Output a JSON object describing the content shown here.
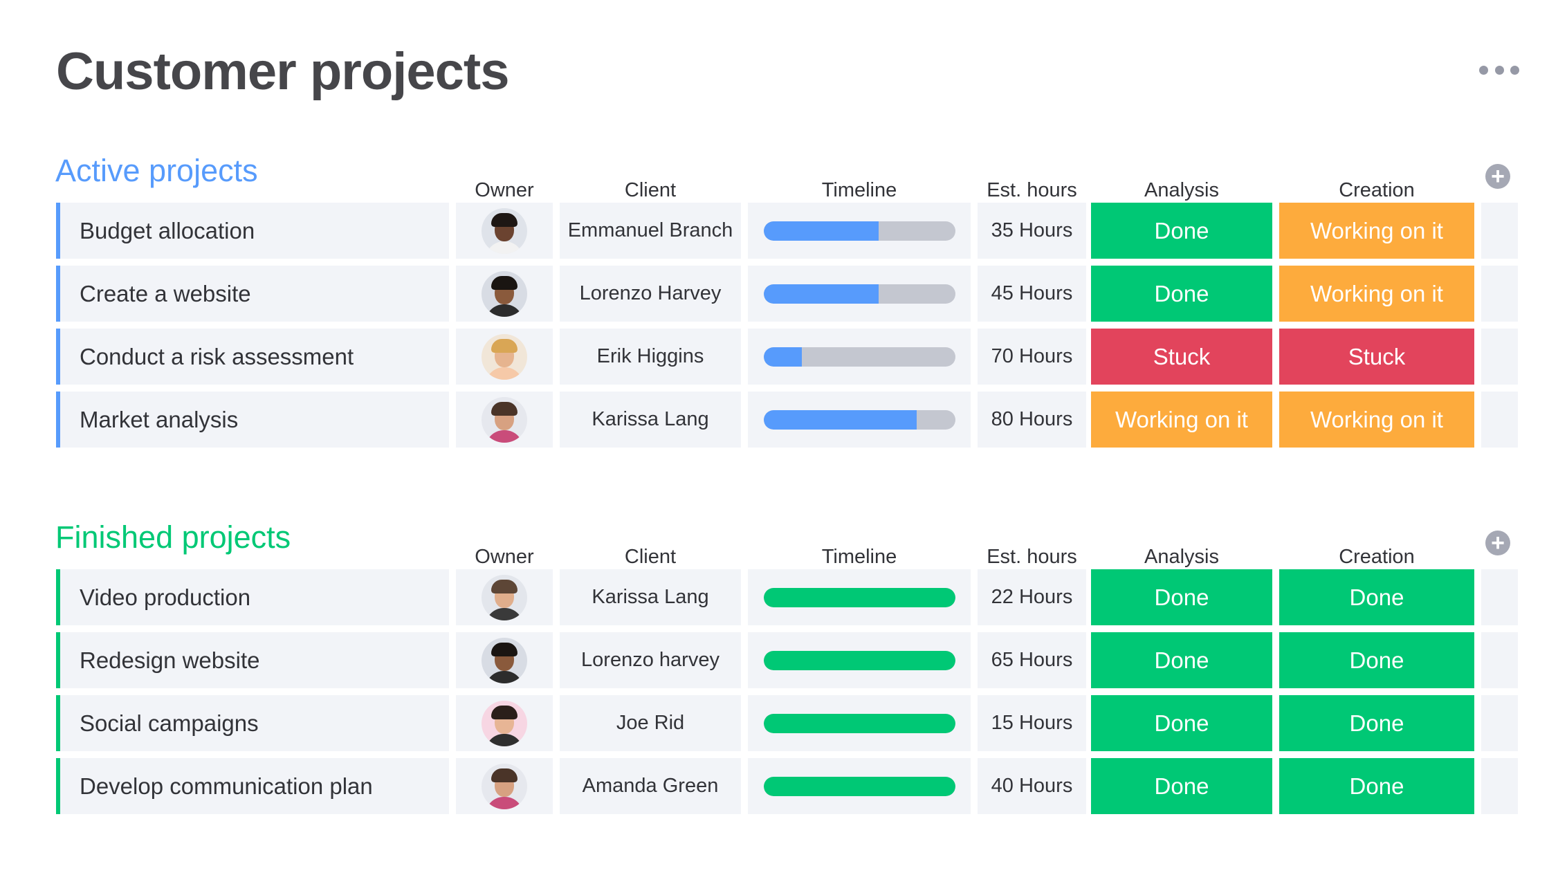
{
  "page": {
    "title": "Customer projects",
    "more_icon": "more-horizontal-icon"
  },
  "colors": {
    "active_group": "#579bfc",
    "finished_group": "#00c875",
    "timeline_active_fill": "#579bfc",
    "timeline_finished_fill": "#00c875",
    "timeline_track": "#c4c7d0",
    "status": {
      "Done": "#00c875",
      "Working on it": "#fdab3d",
      "Stuck": "#e2445c"
    }
  },
  "columns": {
    "owner": "Owner",
    "client": "Client",
    "timeline": "Timeline",
    "hours": "Est. hours",
    "analysis": "Analysis",
    "creation": "Creation",
    "add_icon": "plus-circle-icon"
  },
  "groups": [
    {
      "title": "Active projects",
      "kind": "active",
      "rows": [
        {
          "name": "Budget allocation",
          "owner_avatar": "avatar-woman-glasses",
          "client": "Emmanuel Branch",
          "timeline_progress": 0.6,
          "hours": "35 Hours",
          "analysis": "Done",
          "creation": "Working on it"
        },
        {
          "name": "Create a website",
          "owner_avatar": "avatar-man-beard",
          "client": "Lorenzo Harvey",
          "timeline_progress": 0.6,
          "hours": "45 Hours",
          "analysis": "Done",
          "creation": "Working on it"
        },
        {
          "name": "Conduct a risk assessment",
          "owner_avatar": "avatar-woman-blonde",
          "client": "Erik Higgins",
          "timeline_progress": 0.2,
          "hours": "70 Hours",
          "analysis": "Stuck",
          "creation": "Stuck"
        },
        {
          "name": "Market analysis",
          "owner_avatar": "avatar-man-floral-shirt",
          "client": "Karissa Lang",
          "timeline_progress": 0.8,
          "hours": "80 Hours",
          "analysis": "Working on it",
          "creation": "Working on it"
        }
      ]
    },
    {
      "title": "Finished projects",
      "kind": "finished",
      "rows": [
        {
          "name": "Video production",
          "owner_avatar": "avatar-man-smiling",
          "client": "Karissa Lang",
          "timeline_progress": 1.0,
          "hours": "22 Hours",
          "analysis": "Done",
          "creation": "Done"
        },
        {
          "name": "Redesign website",
          "owner_avatar": "avatar-man-beard",
          "client": "Lorenzo harvey",
          "timeline_progress": 1.0,
          "hours": "65 Hours",
          "analysis": "Done",
          "creation": "Done"
        },
        {
          "name": "Social campaigns",
          "owner_avatar": "avatar-woman-dark-hair",
          "client": "Joe Rid",
          "timeline_progress": 1.0,
          "hours": "15 Hours",
          "analysis": "Done",
          "creation": "Done"
        },
        {
          "name": "Develop communication plan",
          "owner_avatar": "avatar-man-floral-shirt",
          "client": "Amanda Green",
          "timeline_progress": 1.0,
          "hours": "40 Hours",
          "analysis": "Done",
          "creation": "Done"
        }
      ]
    }
  ]
}
